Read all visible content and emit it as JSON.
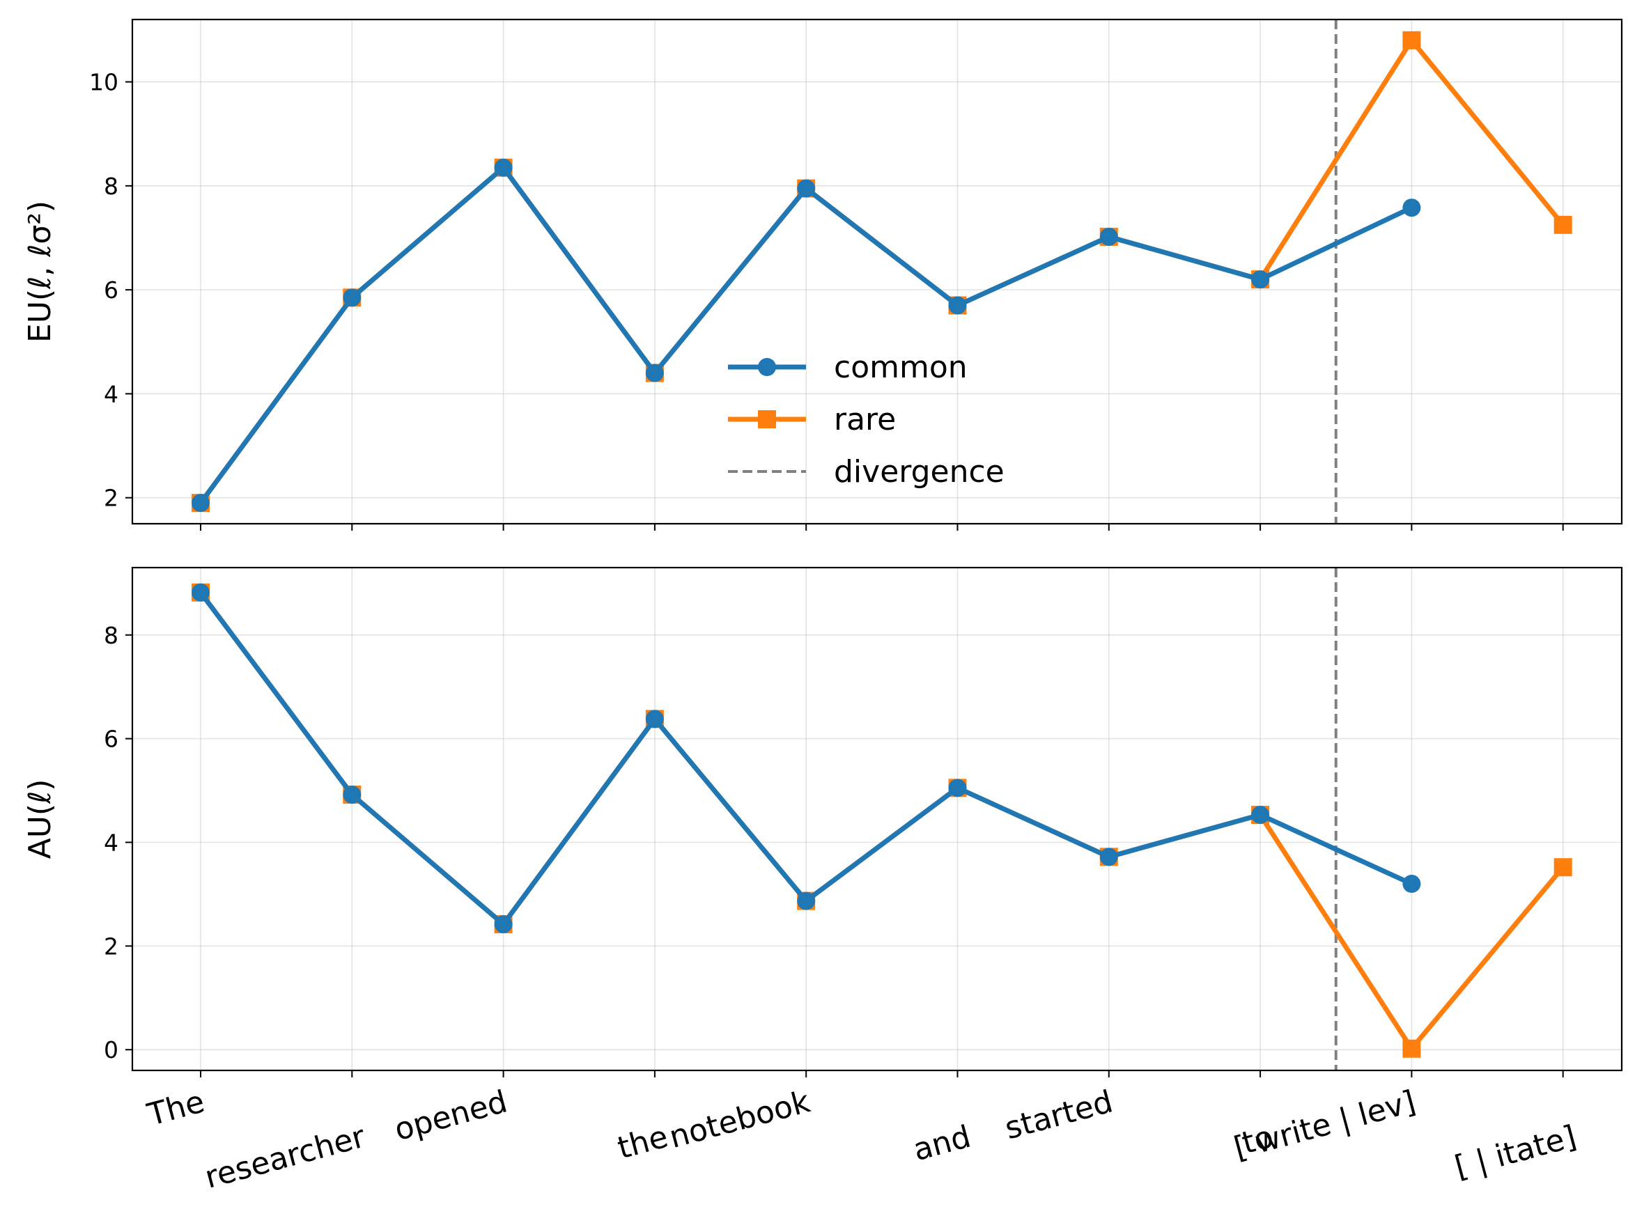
{
  "chart_data": [
    {
      "type": "line",
      "panel": "top",
      "ylabel": "EU(ℓ, ℓσ²)",
      "ylim": [
        1.5,
        11.2
      ],
      "yticks": [
        2,
        4,
        6,
        8,
        10
      ],
      "grid": true,
      "legend_placement": "center",
      "categories": [
        "The",
        "researcher",
        "opened",
        "the",
        "notebook",
        "and",
        "started",
        "to",
        "[ write |  lev]",
        "[ | itate]"
      ],
      "series": [
        {
          "name": "common",
          "color": "#1f77b4",
          "marker": "circle",
          "values": [
            1.9,
            5.85,
            8.35,
            4.4,
            7.95,
            5.7,
            7.02,
            6.2,
            7.58,
            null
          ]
        },
        {
          "name": "rare",
          "color": "#ff7f0e",
          "marker": "square",
          "values": [
            1.9,
            5.85,
            8.35,
            4.4,
            7.95,
            5.7,
            7.02,
            6.2,
            10.8,
            7.25
          ]
        }
      ],
      "divergence": {
        "name": "divergence",
        "color": "#808080",
        "x": 7.5
      }
    },
    {
      "type": "line",
      "panel": "bottom",
      "ylabel": "AU(ℓ)",
      "ylim": [
        -0.4,
        9.3
      ],
      "yticks": [
        0,
        2,
        4,
        6,
        8
      ],
      "grid": true,
      "categories": [
        "The",
        "researcher",
        "opened",
        "the",
        "notebook",
        "and",
        "started",
        "to",
        "[ write |  lev]",
        "[ | itate]"
      ],
      "series": [
        {
          "name": "common",
          "color": "#1f77b4",
          "marker": "circle",
          "values": [
            8.82,
            4.92,
            2.42,
            6.38,
            2.87,
            5.05,
            3.72,
            4.53,
            3.2,
            null
          ]
        },
        {
          "name": "rare",
          "color": "#ff7f0e",
          "marker": "square",
          "values": [
            8.82,
            4.92,
            2.42,
            6.38,
            2.87,
            5.05,
            3.72,
            4.53,
            0.02,
            3.52
          ]
        }
      ],
      "divergence": {
        "name": "divergence",
        "color": "#808080",
        "x": 7.5
      }
    }
  ]
}
